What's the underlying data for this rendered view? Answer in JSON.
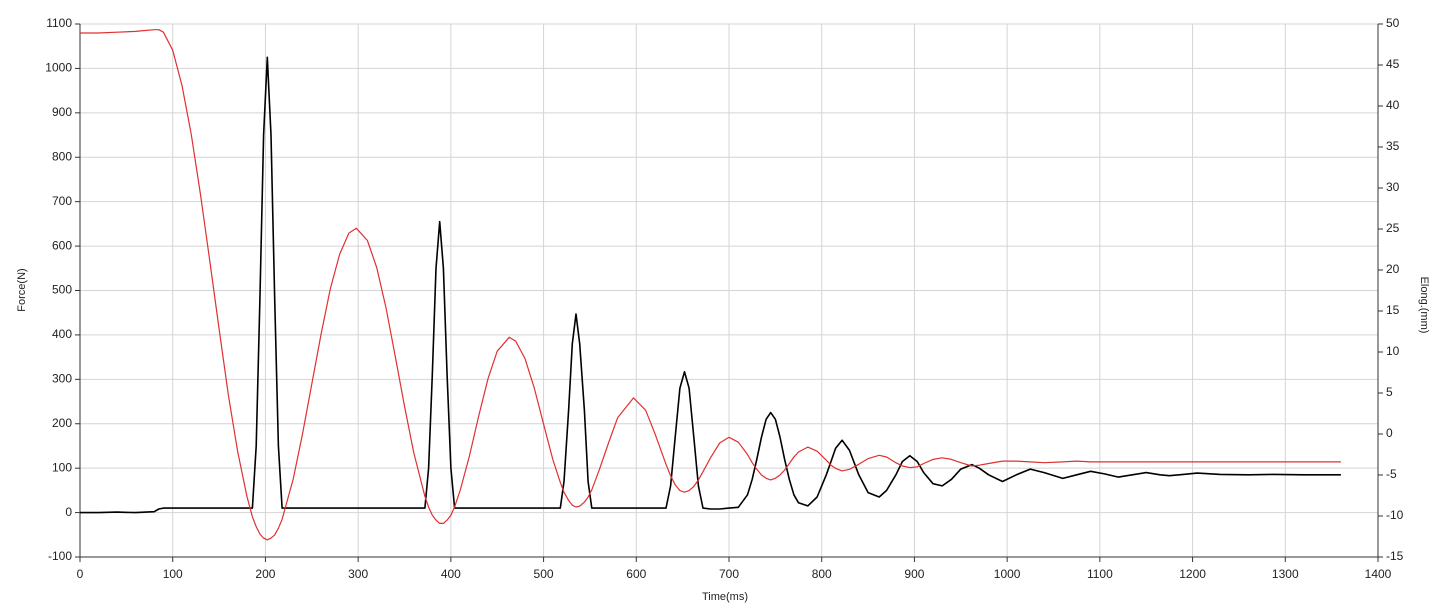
{
  "chart_data": {
    "type": "line",
    "x_label": "Time(ms)",
    "y_label": "Force(N)",
    "y2_label": "Elong.(mm)",
    "x": [
      0,
      20,
      40,
      60,
      80,
      85,
      90,
      100,
      110,
      120,
      130,
      140,
      150,
      160,
      170,
      180,
      186,
      190,
      194,
      198,
      202,
      206,
      210,
      214,
      218,
      230,
      240,
      250,
      260,
      270,
      280,
      290,
      298,
      310,
      320,
      330,
      340,
      350,
      360,
      372,
      376,
      380,
      384,
      388,
      392,
      396,
      400,
      404,
      410,
      420,
      430,
      440,
      450,
      463,
      470,
      480,
      490,
      500,
      510,
      518,
      522,
      527,
      531,
      535,
      539,
      544,
      548,
      552,
      560,
      570,
      580,
      597,
      610,
      620,
      632,
      637,
      642,
      647,
      652,
      657,
      662,
      667,
      672,
      680,
      690,
      700,
      710,
      720,
      725,
      730,
      735,
      740,
      745,
      750,
      755,
      760,
      765,
      770,
      775,
      785,
      795,
      805,
      810,
      815,
      822,
      830,
      840,
      850,
      862,
      870,
      880,
      887,
      895,
      903,
      910,
      920,
      930,
      940,
      950,
      962,
      970,
      980,
      995,
      1010,
      1025,
      1040,
      1060,
      1075,
      1090,
      1105,
      1120,
      1135,
      1150,
      1165,
      1175,
      1190,
      1205,
      1230,
      1260,
      1290,
      1320,
      1360
    ],
    "series": [
      {
        "color": "#000000",
        "values": [
          0,
          0,
          1,
          0,
          2,
          8,
          10,
          10,
          10,
          10,
          10,
          10,
          10,
          10,
          10,
          10,
          10,
          150,
          480,
          850,
          1025,
          850,
          480,
          150,
          10,
          10,
          10,
          10,
          10,
          10,
          10,
          10,
          10,
          10,
          10,
          10,
          10,
          10,
          10,
          10,
          100,
          310,
          550,
          655,
          550,
          310,
          100,
          10,
          10,
          10,
          10,
          10,
          10,
          10,
          10,
          10,
          10,
          10,
          10,
          10,
          70,
          230,
          380,
          447,
          380,
          230,
          70,
          10,
          10,
          10,
          10,
          10,
          10,
          10,
          10,
          60,
          170,
          280,
          317,
          280,
          170,
          60,
          10,
          8,
          8,
          10,
          12,
          40,
          75,
          120,
          170,
          210,
          225,
          210,
          170,
          120,
          75,
          40,
          22,
          15,
          35,
          85,
          115,
          145,
          163,
          140,
          85,
          45,
          35,
          50,
          85,
          115,
          128,
          115,
          90,
          65,
          60,
          75,
          98,
          108,
          100,
          85,
          70,
          85,
          98,
          90,
          77,
          85,
          93,
          87,
          80,
          85,
          90,
          85,
          83,
          86,
          89,
          86,
          85,
          86,
          85,
          85
        ]
      },
      {
        "color": "#e03030",
        "axis": "y2",
        "values": [
          48.9,
          48.9,
          49.0,
          49.1,
          49.3,
          49.3,
          49.0,
          46.8,
          42.5,
          36.5,
          29.2,
          21.1,
          12.8,
          4.8,
          -2.1,
          -7.6,
          -10.1,
          -11.3,
          -12.2,
          -12.7,
          -12.9,
          -12.7,
          -12.3,
          -11.5,
          -10.4,
          -5.5,
          0.0,
          6.1,
          12.2,
          17.7,
          21.9,
          24.5,
          25.1,
          23.6,
          20.3,
          15.4,
          9.5,
          3.4,
          -2.3,
          -7.6,
          -8.9,
          -9.9,
          -10.5,
          -10.9,
          -10.9,
          -10.5,
          -9.9,
          -8.9,
          -6.9,
          -2.7,
          2.2,
          6.7,
          10.1,
          11.8,
          11.3,
          9.2,
          5.6,
          1.2,
          -3.1,
          -5.9,
          -7.1,
          -8.1,
          -8.7,
          -8.9,
          -8.8,
          -8.3,
          -7.7,
          -6.8,
          -4.4,
          -1.1,
          2.0,
          4.4,
          2.9,
          0.1,
          -3.7,
          -5.1,
          -6.2,
          -6.9,
          -7.1,
          -6.9,
          -6.4,
          -5.6,
          -4.6,
          -2.9,
          -1.1,
          -0.4,
          -1.0,
          -2.5,
          -3.5,
          -4.3,
          -5.0,
          -5.4,
          -5.6,
          -5.4,
          -5.0,
          -4.4,
          -3.6,
          -2.8,
          -2.2,
          -1.6,
          -2.1,
          -3.2,
          -3.8,
          -4.2,
          -4.5,
          -4.3,
          -3.7,
          -3.0,
          -2.6,
          -2.8,
          -3.5,
          -3.9,
          -4.1,
          -4.0,
          -3.6,
          -3.1,
          -2.9,
          -3.1,
          -3.5,
          -3.9,
          -3.8,
          -3.6,
          -3.3,
          -3.3,
          -3.4,
          -3.5,
          -3.4,
          -3.3,
          -3.4,
          -3.4,
          -3.4,
          -3.4,
          -3.4,
          -3.4,
          -3.4,
          -3.4,
          -3.4,
          -3.4,
          -3.4,
          -3.4,
          -3.4,
          -3.4
        ]
      }
    ],
    "xlim": [
      0,
      1400
    ],
    "xticks": [
      0,
      100,
      200,
      300,
      400,
      500,
      600,
      700,
      800,
      900,
      1000,
      1100,
      1200,
      1300,
      1400
    ],
    "ylim": [
      -100,
      1100
    ],
    "yticks": [
      -100,
      0,
      100,
      200,
      300,
      400,
      500,
      600,
      700,
      800,
      900,
      1000,
      1100
    ],
    "y2lim": [
      -15,
      50
    ],
    "y2ticks": [
      -15,
      -10,
      -5,
      0,
      5,
      10,
      15,
      20,
      25,
      30,
      35,
      40,
      45,
      50
    ],
    "grid": true
  }
}
